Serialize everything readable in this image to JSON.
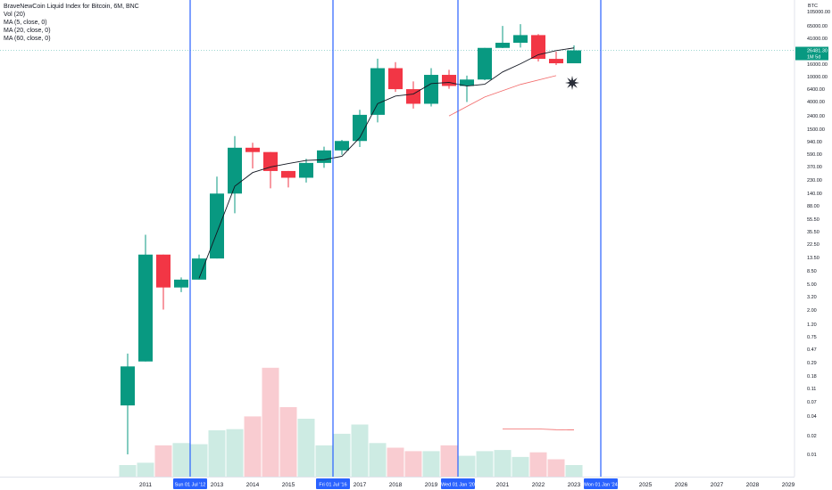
{
  "legend": {
    "title": "BraveNewCoin Liquid Index for Bitcoin, 6M, BNC",
    "vol": "Vol (20)",
    "ma5": "MA (5, close, 0)",
    "ma20": "MA (20, close, 0)",
    "ma60": "MA (60, close, 0)"
  },
  "axis_unit": "BTC",
  "last_price": "26481.30",
  "countdown": "1M 5d",
  "colors": {
    "up": "#26a69a",
    "down": "#ef5350",
    "up_candle": "#089981",
    "down_candle": "#f23645",
    "vol_up": "#cdebe3",
    "vol_down": "#f9ccd1",
    "ma": "#131722",
    "ma_long": "#f26b6b",
    "vline": "#2962ff",
    "last_price_bg": "#089981",
    "date_label_bg": "#2962ff"
  },
  "chart_data": {
    "type": "candlestick",
    "y_scale": "log",
    "y_tick_labels": [
      "105000.00",
      "65000.00",
      "41000.00",
      "16000.00",
      "10000.00",
      "6400.00",
      "4000.00",
      "2400.00",
      "1500.00",
      "940.00",
      "590.00",
      "370.00",
      "230.00",
      "140.00",
      "88.00",
      "55.50",
      "35.50",
      "22.50",
      "13.50",
      "8.50",
      "5.00",
      "3.20",
      "2.00",
      "1.20",
      "0.75",
      "0.47",
      "0.29",
      "0.18",
      "0.11",
      "0.07",
      "0.04",
      "0.02",
      "0.01"
    ],
    "x_tick_labels": [
      "2011",
      "2012",
      "2013",
      "2014",
      "2015",
      "2016",
      "2017",
      "2018",
      "2019",
      "2020",
      "2021",
      "2022",
      "2023",
      "2024",
      "2025",
      "2026",
      "2027",
      "2028",
      "2029"
    ],
    "candles": [
      {
        "period": "2010-07",
        "open": 0.06,
        "high": 0.4,
        "low": 0.01,
        "close": 0.25
      },
      {
        "period": "2011-01",
        "open": 0.3,
        "high": 31,
        "low": 0.3,
        "close": 15
      },
      {
        "period": "2011-07",
        "open": 15,
        "high": 15,
        "low": 2,
        "close": 4.5
      },
      {
        "period": "2012-01",
        "open": 4.5,
        "high": 6.5,
        "low": 3.8,
        "close": 6
      },
      {
        "period": "2012-07",
        "open": 6,
        "high": 15,
        "low": 6,
        "close": 13
      },
      {
        "period": "2013-01",
        "open": 13,
        "high": 260,
        "low": 13,
        "close": 140
      },
      {
        "period": "2013-07",
        "open": 140,
        "high": 1150,
        "low": 68,
        "close": 750
      },
      {
        "period": "2014-01",
        "open": 750,
        "high": 900,
        "low": 350,
        "close": 640
      },
      {
        "period": "2014-07",
        "open": 640,
        "high": 640,
        "low": 170,
        "close": 320
      },
      {
        "period": "2015-01",
        "open": 320,
        "high": 320,
        "low": 175,
        "close": 250
      },
      {
        "period": "2015-07",
        "open": 250,
        "high": 500,
        "low": 210,
        "close": 430
      },
      {
        "period": "2016-01",
        "open": 430,
        "high": 780,
        "low": 360,
        "close": 680
      },
      {
        "period": "2016-07",
        "open": 680,
        "high": 1000,
        "low": 580,
        "close": 960
      },
      {
        "period": "2017-01",
        "open": 960,
        "high": 3000,
        "low": 770,
        "close": 2500
      },
      {
        "period": "2017-07",
        "open": 2500,
        "high": 19500,
        "low": 1900,
        "close": 13800
      },
      {
        "period": "2018-01",
        "open": 13800,
        "high": 17200,
        "low": 5800,
        "close": 6400
      },
      {
        "period": "2018-07",
        "open": 6400,
        "high": 8500,
        "low": 3150,
        "close": 3750
      },
      {
        "period": "2019-01",
        "open": 3750,
        "high": 13800,
        "low": 3400,
        "close": 10800
      },
      {
        "period": "2019-07",
        "open": 10800,
        "high": 13000,
        "low": 6500,
        "close": 7200
      },
      {
        "period": "2020-01",
        "open": 7200,
        "high": 10500,
        "low": 4000,
        "close": 9100
      },
      {
        "period": "2020-07",
        "open": 9100,
        "high": 29000,
        "low": 8900,
        "close": 29000
      },
      {
        "period": "2021-01",
        "open": 29000,
        "high": 64800,
        "low": 28800,
        "close": 35000
      },
      {
        "period": "2021-07",
        "open": 35000,
        "high": 69000,
        "low": 29300,
        "close": 46300
      },
      {
        "period": "2022-01",
        "open": 46300,
        "high": 48000,
        "low": 17600,
        "close": 19400
      },
      {
        "period": "2022-07",
        "open": 19400,
        "high": 25200,
        "low": 15500,
        "close": 16500
      },
      {
        "period": "2023-01",
        "open": 16500,
        "high": 31800,
        "low": 16500,
        "close": 26481.3
      }
    ],
    "ma5": [
      null,
      null,
      null,
      null,
      6.3,
      33.7,
      183,
      302,
      371,
      420,
      472,
      484,
      548,
      1086,
      3760,
      4970,
      5360,
      7840,
      8190,
      7180,
      7660,
      12000,
      16200,
      22600,
      26200,
      29000
    ],
    "ma_long_points": [
      {
        "period": "2020-01",
        "value": 2400
      },
      {
        "period": "2021-01",
        "value": 4800
      },
      {
        "period": "2022-01",
        "value": 7600
      },
      {
        "period": "2023-01",
        "value": 10500
      }
    ],
    "volume_fraction": [
      0.1,
      0.12,
      0.27,
      0.29,
      0.28,
      0.4,
      0.41,
      0.52,
      0.94,
      0.6,
      0.5,
      0.27,
      0.37,
      0.45,
      0.29,
      0.25,
      0.22,
      0.22,
      0.27,
      0.18,
      0.22,
      0.23,
      0.17,
      0.21,
      0.15,
      0.1
    ],
    "vol_ma_fraction": [
      0.48,
      0.48,
      0.48,
      0.45,
      0.44
    ],
    "vertical_lines": [
      {
        "label": "Sun 01 Jul '12",
        "period": "2012-07"
      },
      {
        "label": "Fri 01 Jul '16",
        "period": "2016-07"
      },
      {
        "label": "Wed 01 Jan '20",
        "period": "2020-01"
      },
      {
        "label": "Mon 01 Jan '24",
        "period": "2024-01"
      }
    ]
  }
}
